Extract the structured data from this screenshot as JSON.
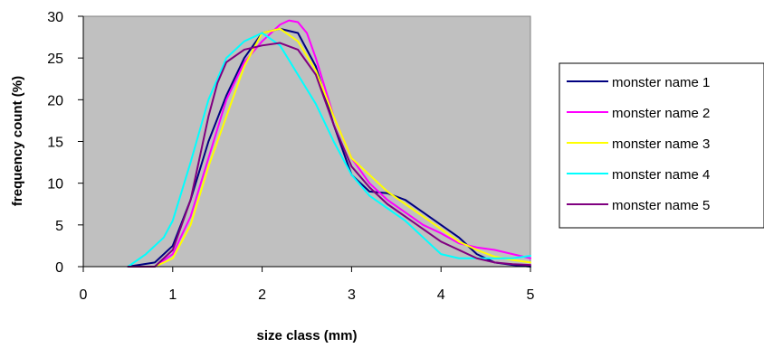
{
  "chart_data": {
    "type": "line",
    "title": "",
    "xlabel": "size class (mm)",
    "ylabel": "frequency count (%)",
    "xlim": [
      0,
      5
    ],
    "ylim": [
      0,
      30
    ],
    "xticks": [
      0,
      1,
      2,
      3,
      4,
      5
    ],
    "yticks": [
      0,
      5,
      10,
      15,
      20,
      25,
      30
    ],
    "grid": false,
    "legend_position": "right",
    "plot_background": "#c0c0c0",
    "series": [
      {
        "name": "monster name 1",
        "color": "#000080",
        "x": [
          0.5,
          0.8,
          1.0,
          1.2,
          1.4,
          1.6,
          1.8,
          2.0,
          2.2,
          2.4,
          2.6,
          2.8,
          3.0,
          3.2,
          3.4,
          3.6,
          3.8,
          4.0,
          4.2,
          4.4,
          4.6,
          4.8,
          5.0
        ],
        "y": [
          0.0,
          0.5,
          2.5,
          8.0,
          15.0,
          20.5,
          25.0,
          28.0,
          28.5,
          28.0,
          24.0,
          17.0,
          11.0,
          9.0,
          8.8,
          8.0,
          6.5,
          5.0,
          3.5,
          1.5,
          0.5,
          0.2,
          0.0
        ]
      },
      {
        "name": "monster name 2",
        "color": "#ff00ff",
        "x": [
          0.5,
          0.8,
          1.0,
          1.2,
          1.4,
          1.6,
          1.8,
          2.0,
          2.2,
          2.3,
          2.4,
          2.5,
          2.6,
          2.8,
          3.0,
          3.2,
          3.4,
          3.6,
          3.8,
          4.0,
          4.2,
          4.4,
          4.6,
          4.8,
          5.0
        ],
        "y": [
          0.0,
          0.0,
          1.5,
          6.0,
          13.0,
          20.0,
          24.5,
          27.0,
          29.0,
          29.5,
          29.3,
          28.0,
          25.0,
          18.0,
          13.0,
          10.0,
          8.0,
          6.5,
          5.0,
          4.0,
          2.8,
          2.3,
          2.0,
          1.5,
          1.0
        ]
      },
      {
        "name": "monster name 3",
        "color": "#ffff00",
        "x": [
          0.5,
          0.8,
          1.0,
          1.2,
          1.4,
          1.6,
          1.8,
          2.0,
          2.2,
          2.4,
          2.6,
          2.8,
          3.0,
          3.2,
          3.4,
          3.6,
          3.8,
          4.0,
          4.2,
          4.4,
          4.6,
          4.8,
          5.0
        ],
        "y": [
          0.0,
          0.0,
          1.0,
          5.0,
          12.0,
          18.0,
          24.0,
          28.0,
          28.5,
          27.0,
          23.5,
          18.0,
          13.0,
          11.0,
          9.0,
          7.5,
          6.0,
          4.5,
          3.0,
          2.0,
          1.2,
          0.8,
          0.5
        ]
      },
      {
        "name": "monster name 4",
        "color": "#00ffff",
        "x": [
          0.5,
          0.7,
          0.9,
          1.0,
          1.1,
          1.2,
          1.4,
          1.6,
          1.8,
          2.0,
          2.2,
          2.4,
          2.6,
          2.8,
          3.0,
          3.2,
          3.4,
          3.6,
          3.8,
          4.0,
          4.2,
          4.4,
          4.6,
          4.8,
          5.0
        ],
        "y": [
          0.0,
          1.5,
          3.5,
          5.5,
          9.0,
          12.5,
          20.0,
          25.0,
          27.0,
          28.0,
          26.5,
          23.0,
          19.5,
          15.0,
          11.0,
          8.5,
          7.0,
          5.5,
          3.5,
          1.5,
          1.0,
          1.0,
          1.0,
          1.0,
          1.3
        ]
      },
      {
        "name": "monster name 5",
        "color": "#800080",
        "x": [
          0.5,
          0.8,
          1.0,
          1.2,
          1.4,
          1.5,
          1.6,
          1.8,
          2.0,
          2.2,
          2.4,
          2.6,
          2.8,
          3.0,
          3.2,
          3.4,
          3.6,
          3.8,
          4.0,
          4.2,
          4.4,
          4.6,
          4.8,
          5.0
        ],
        "y": [
          0.0,
          0.0,
          2.0,
          8.0,
          18.0,
          22.0,
          24.5,
          26.0,
          26.5,
          26.8,
          26.0,
          23.0,
          17.0,
          12.0,
          9.5,
          7.5,
          6.0,
          4.5,
          3.0,
          2.0,
          1.0,
          0.5,
          0.3,
          0.2
        ]
      }
    ]
  }
}
